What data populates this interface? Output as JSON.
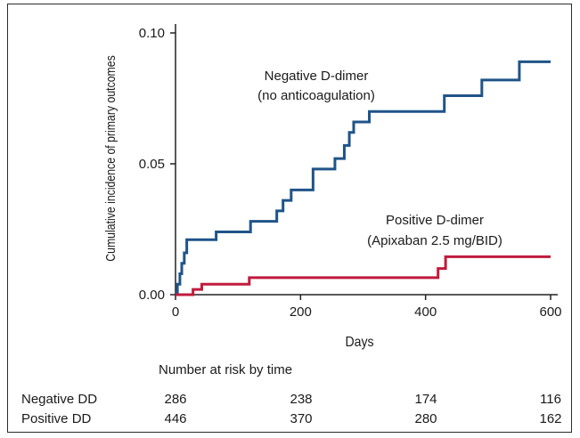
{
  "chart_data": {
    "type": "line",
    "subtype": "step",
    "xlabel": "Days",
    "ylabel": "Cumulative incidence of primary outcomes",
    "xlim": [
      0,
      600
    ],
    "ylim": [
      0,
      0.1
    ],
    "xticks": [
      "0",
      "200",
      "400",
      "600"
    ],
    "yticks": [
      "0.00",
      "0.05",
      "0.10"
    ],
    "grid": false,
    "series": [
      {
        "name": "Negative D-dimer (no anticoagulation)",
        "label_lines": [
          "Negative D-dimer",
          "(no anticoagulation)"
        ],
        "color": "#1f5488",
        "x": [
          0,
          3,
          7,
          10,
          14,
          18,
          65,
          120,
          162,
          172,
          185,
          220,
          255,
          270,
          278,
          285,
          310,
          430,
          490,
          550,
          600
        ],
        "y": [
          0.001,
          0.004,
          0.008,
          0.012,
          0.016,
          0.021,
          0.024,
          0.028,
          0.032,
          0.036,
          0.04,
          0.048,
          0.052,
          0.057,
          0.062,
          0.066,
          0.07,
          0.076,
          0.082,
          0.089,
          0.089
        ]
      },
      {
        "name": "Positive D-dimer (Apixaban 2.5 mg/BID)",
        "label_lines": [
          "Positive D-dimer",
          "(Apixaban 2.5 mg/BID)"
        ],
        "color": "#c01b3c",
        "x": [
          0,
          28,
          42,
          118,
          420,
          432,
          600
        ],
        "y": [
          0,
          0.002,
          0.004,
          0.0065,
          0.01,
          0.0145,
          0.0145
        ]
      }
    ]
  },
  "risk_table": {
    "title": "Number at risk by time",
    "time_points": [
      0,
      200,
      400,
      600
    ],
    "rows": [
      {
        "label": "Negative DD",
        "values": [
          "286",
          "238",
          "174",
          "116"
        ]
      },
      {
        "label": "Positive DD",
        "values": [
          "446",
          "370",
          "280",
          "162"
        ]
      }
    ]
  }
}
